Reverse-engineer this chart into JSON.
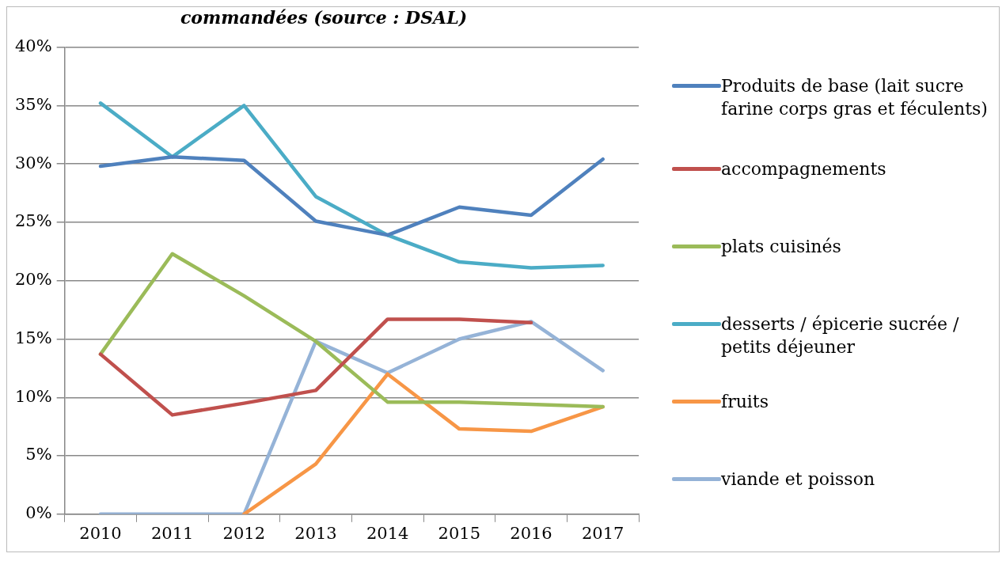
{
  "chart_data": {
    "type": "line",
    "title": "commandées (source : DSAL)",
    "categories": [
      "2010",
      "2011",
      "2012",
      "2013",
      "2014",
      "2015",
      "2016",
      "2017"
    ],
    "series": [
      {
        "name": "Produits de base (lait sucre farine corps gras et féculents)",
        "color": "#4f81bd",
        "values": [
          29.8,
          30.6,
          30.3,
          25.1,
          23.9,
          26.3,
          25.6,
          30.4
        ]
      },
      {
        "name": "accompagnements",
        "color": "#c0504d",
        "values": [
          13.7,
          8.5,
          9.5,
          10.6,
          16.7,
          16.7,
          16.4,
          null
        ]
      },
      {
        "name": "plats cuisinés",
        "color": "#9bbb59",
        "values": [
          13.7,
          22.3,
          18.7,
          14.8,
          9.6,
          9.6,
          9.4,
          9.2
        ]
      },
      {
        "name": "desserts / épicerie sucrée / petits déjeuner",
        "color": "#4bacc6",
        "values": [
          35.2,
          30.6,
          35.0,
          27.2,
          23.9,
          21.6,
          21.1,
          21.3
        ]
      },
      {
        "name": "fruits",
        "color": "#f79646",
        "values": [
          null,
          null,
          0,
          4.3,
          12.0,
          7.3,
          7.1,
          9.2
        ]
      },
      {
        "name": "viande et poisson",
        "color": "#95b3d7",
        "values": [
          0,
          0,
          0,
          14.8,
          12.1,
          15.0,
          16.5,
          12.3
        ]
      }
    ],
    "ylim": [
      0,
      40
    ],
    "yticks": [
      {
        "value": 0,
        "label": "0%"
      },
      {
        "value": 5,
        "label": "5%"
      },
      {
        "value": 10,
        "label": "10%"
      },
      {
        "value": 15,
        "label": "15%"
      },
      {
        "value": 20,
        "label": "20%"
      },
      {
        "value": 25,
        "label": "25%"
      },
      {
        "value": 30,
        "label": "30%"
      },
      {
        "value": 35,
        "label": "35%"
      },
      {
        "value": 40,
        "label": "40%"
      }
    ],
    "grid": "y",
    "legend": "right",
    "marker": "none",
    "line_style": "solid"
  }
}
